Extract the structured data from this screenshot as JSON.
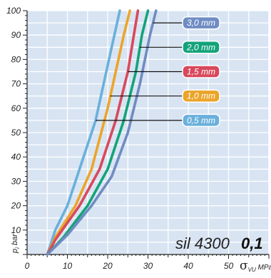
{
  "chart_data": {
    "type": "line",
    "xlabel_symbol": "σ",
    "xlabel_sub": "VU",
    "xlabel_unit": "MPa",
    "ylabel_main": "p",
    "ylabel_sub": "i",
    "ylabel_unit": "bar",
    "xlim": [
      0,
      60
    ],
    "ylim": [
      0,
      100
    ],
    "x_ticks": [
      0,
      10,
      20,
      30,
      40,
      50
    ],
    "y_ticks": [
      10,
      20,
      30,
      40,
      50,
      60,
      70,
      80,
      90,
      100
    ],
    "grid": true,
    "background": "#d8e4f2",
    "product_label": "sil 4300",
    "value_label": "0,1",
    "series": [
      {
        "name": "0,5 mm",
        "color": "#6ab0dc",
        "points": [
          [
            5,
            0
          ],
          [
            7,
            10
          ],
          [
            10,
            20
          ],
          [
            13,
            35
          ],
          [
            17,
            55
          ],
          [
            19,
            70
          ],
          [
            21,
            85
          ],
          [
            23,
            100
          ]
        ],
        "callout_y": 55
      },
      {
        "name": "1,0 mm",
        "color": "#eba52a",
        "points": [
          [
            5,
            0
          ],
          [
            7,
            7
          ],
          [
            12,
            20
          ],
          [
            16,
            35
          ],
          [
            20,
            60
          ],
          [
            22,
            75
          ],
          [
            24,
            90
          ],
          [
            25.5,
            100
          ]
        ],
        "callout_y": 65
      },
      {
        "name": "1,5 mm",
        "color": "#d8495c",
        "points": [
          [
            5,
            0
          ],
          [
            7,
            6
          ],
          [
            13,
            20
          ],
          [
            18,
            35
          ],
          [
            22,
            55
          ],
          [
            25,
            75
          ],
          [
            26.5,
            90
          ],
          [
            27.5,
            100
          ]
        ],
        "callout_y": 75
      },
      {
        "name": "2,0 mm",
        "color": "#13a37a",
        "points": [
          [
            5,
            0
          ],
          [
            9,
            7
          ],
          [
            15,
            20
          ],
          [
            20,
            35
          ],
          [
            24,
            55
          ],
          [
            27,
            75
          ],
          [
            28.5,
            90
          ],
          [
            30,
            100
          ]
        ],
        "callout_y": 85
      },
      {
        "name": "3,0 mm",
        "color": "#6f8cc3",
        "points": [
          [
            5,
            0
          ],
          [
            10,
            8
          ],
          [
            16,
            20
          ],
          [
            21,
            32
          ],
          [
            25,
            50
          ],
          [
            28,
            70
          ],
          [
            30.5,
            90
          ],
          [
            32,
            100
          ]
        ],
        "callout_y": 95
      }
    ]
  }
}
